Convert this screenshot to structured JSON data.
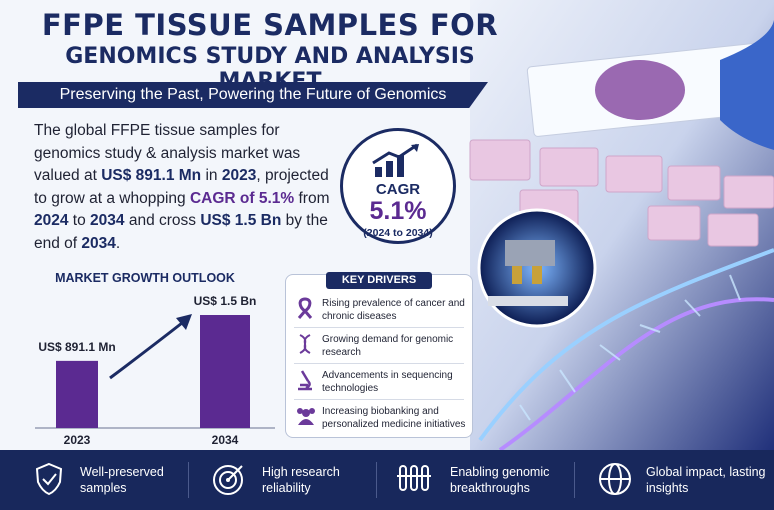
{
  "header": {
    "title_line1": "FFPE TISSUE SAMPLES FOR",
    "title_line2": "GENOMICS STUDY AND ANALYSIS MARKET",
    "tagline": "Preserving the Past, Powering the Future of Genomics"
  },
  "intro": {
    "segments": [
      "The global FFPE tissue samples for genomics study & analysis market was valued at ",
      "US$ 891.1 Mn",
      " in ",
      "2023",
      ", projected to grow at a whopping ",
      "CAGR of 5.1%",
      " from ",
      "2024",
      " to ",
      "2034",
      " and cross ",
      "US$ 1.5 Bn",
      " by the end of ",
      "2034",
      "."
    ]
  },
  "cagr": {
    "label": "CAGR",
    "value": "5.1%",
    "period": "(2024 to 2034)"
  },
  "chart_data": {
    "type": "bar",
    "title": "MARKET GROWTH OUTLOOK",
    "categories": [
      "2023",
      "2034"
    ],
    "values": [
      891.1,
      1500
    ],
    "value_labels": [
      "US$ 891.1 Mn",
      "US$ 1.5 Bn"
    ],
    "color": "#5b2a91"
  },
  "key_drivers": {
    "title": "KEY DRIVERS",
    "items": [
      "Rising prevalence of cancer and chronic diseases",
      "Growing demand for genomic research",
      "Advancements in sequencing technologies",
      "Increasing biobanking and personalized medicine initiatives"
    ]
  },
  "footer": {
    "items": [
      "Well-preserved samples",
      "High research reliability",
      "Enabling genomic breakthroughs",
      "Global impact, lasting insights"
    ]
  }
}
